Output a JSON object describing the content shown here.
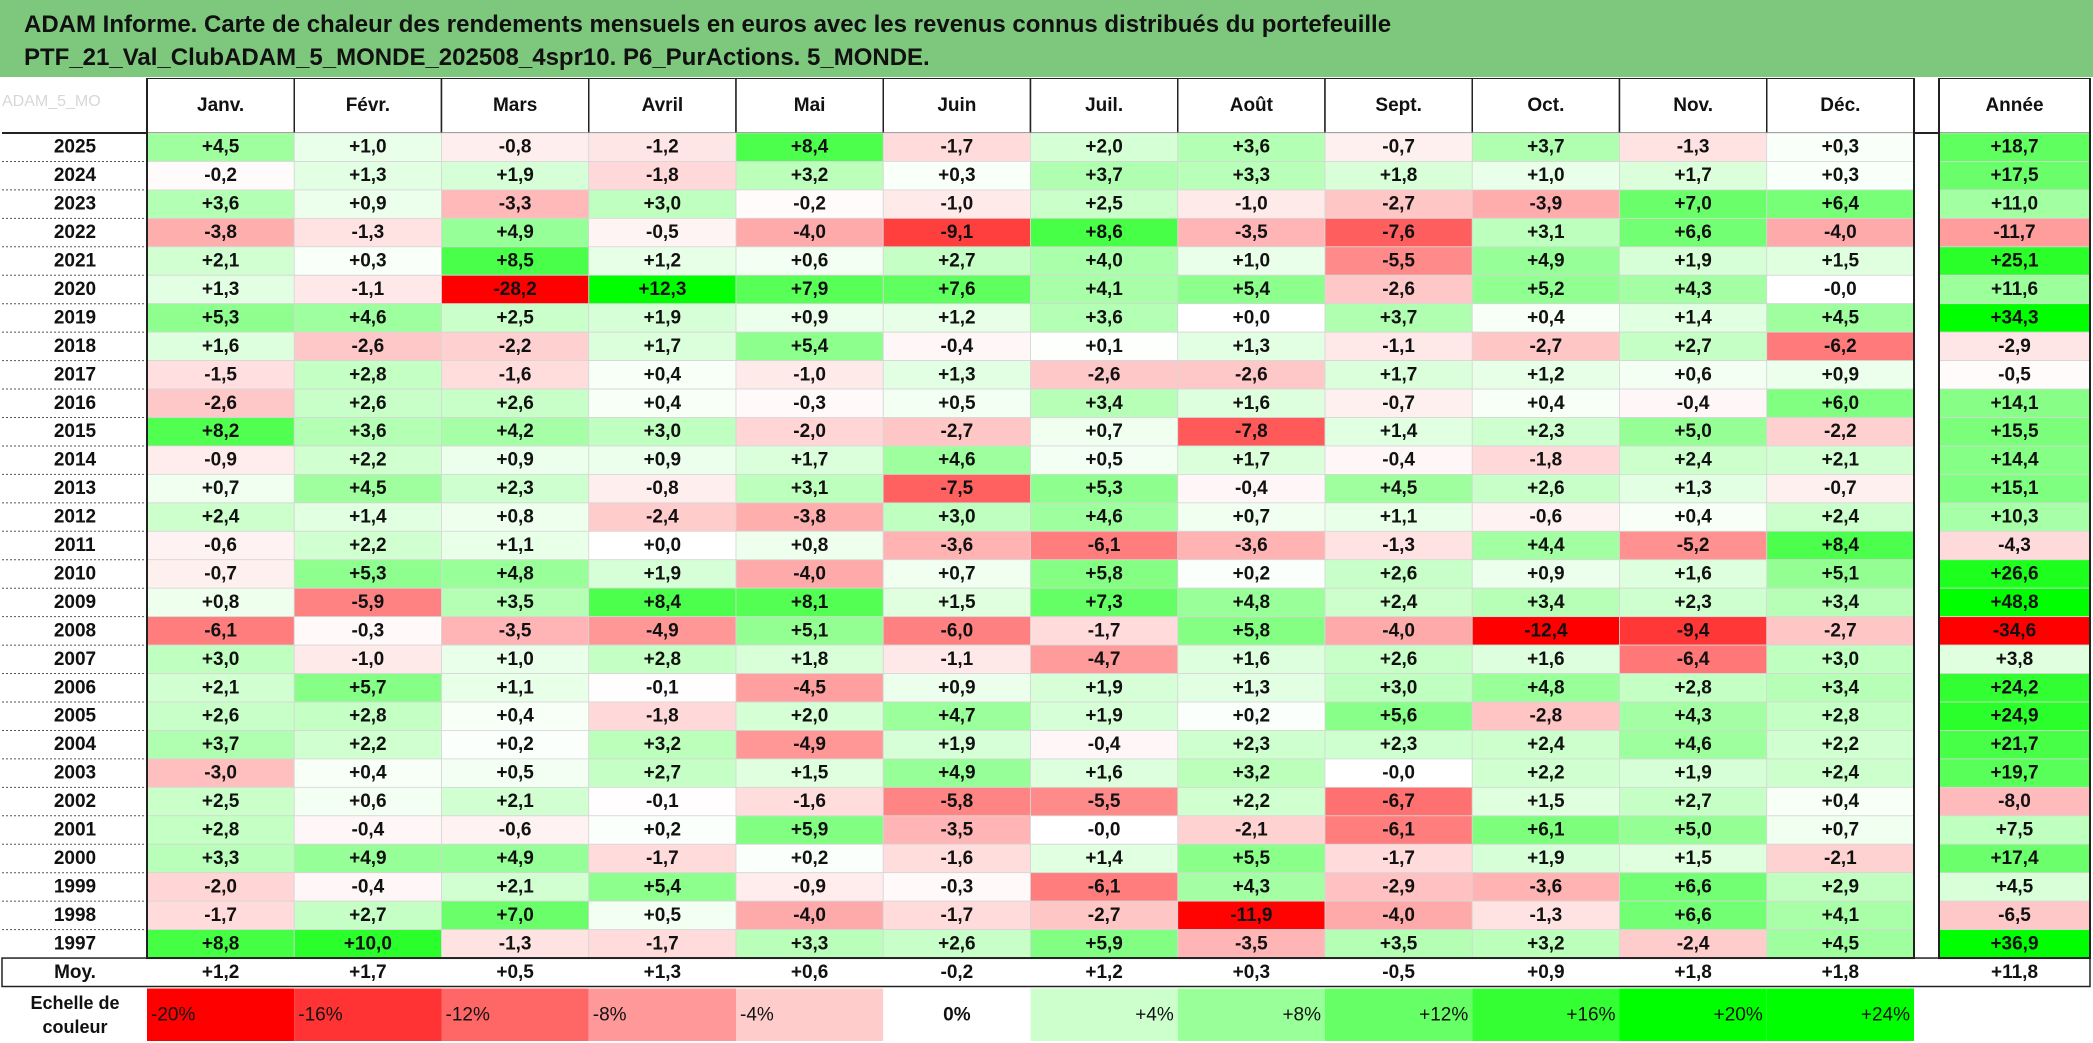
{
  "title_lines": [
    "ADAM Informe. Carte de chaleur des rendements mensuels en euros avec les revenus connus distribués du portefeuille",
    "PTF_21_Val_ClubADAM_5_MONDE_202508_4spr10. P6_PurActions. 5_MONDE."
  ],
  "watermark": "ADAM_5_MO",
  "colors": {
    "header_bg": "#7ec87e",
    "negative_max": "#ff0000",
    "neutral": "#ffffff",
    "positive_max": "#00ff00"
  },
  "chart_data": {
    "type": "heatmap",
    "columns": [
      "Janv.",
      "Févr.",
      "Mars",
      "Avril",
      "Mai",
      "Juin",
      "Juil.",
      "Août",
      "Sept.",
      "Oct.",
      "Nov.",
      "Déc."
    ],
    "total_column": "Année",
    "rows": [
      {
        "label": "2025",
        "values": [
          "+4,5",
          "+1,0",
          "-0,8",
          "-1,2",
          "+8,4",
          "-1,7",
          "+2,0",
          "+3,6",
          "-0,7",
          "+3,7",
          "-1,3",
          "+0,3"
        ],
        "total": "+18,7"
      },
      {
        "label": "2024",
        "values": [
          "-0,2",
          "+1,3",
          "+1,9",
          "-1,8",
          "+3,2",
          "+0,3",
          "+3,7",
          "+3,3",
          "+1,8",
          "+1,0",
          "+1,7",
          "+0,3"
        ],
        "total": "+17,5"
      },
      {
        "label": "2023",
        "values": [
          "+3,6",
          "+0,9",
          "-3,3",
          "+3,0",
          "-0,2",
          "-1,0",
          "+2,5",
          "-1,0",
          "-2,7",
          "-3,9",
          "+7,0",
          "+6,4"
        ],
        "total": "+11,0"
      },
      {
        "label": "2022",
        "values": [
          "-3,8",
          "-1,3",
          "+4,9",
          "-0,5",
          "-4,0",
          "-9,1",
          "+8,6",
          "-3,5",
          "-7,6",
          "+3,1",
          "+6,6",
          "-4,0"
        ],
        "total": "-11,7"
      },
      {
        "label": "2021",
        "values": [
          "+2,1",
          "+0,3",
          "+8,5",
          "+1,2",
          "+0,6",
          "+2,7",
          "+4,0",
          "+1,0",
          "-5,5",
          "+4,9",
          "+1,9",
          "+1,5"
        ],
        "total": "+25,1"
      },
      {
        "label": "2020",
        "values": [
          "+1,3",
          "-1,1",
          "-28,2",
          "+12,3",
          "+7,9",
          "+7,6",
          "+4,1",
          "+5,4",
          "-2,6",
          "+5,2",
          "+4,3",
          "-0,0"
        ],
        "total": "+11,6"
      },
      {
        "label": "2019",
        "values": [
          "+5,3",
          "+4,6",
          "+2,5",
          "+1,9",
          "+0,9",
          "+1,2",
          "+3,6",
          "+0,0",
          "+3,7",
          "+0,4",
          "+1,4",
          "+4,5"
        ],
        "total": "+34,3"
      },
      {
        "label": "2018",
        "values": [
          "+1,6",
          "-2,6",
          "-2,2",
          "+1,7",
          "+5,4",
          "-0,4",
          "+0,1",
          "+1,3",
          "-1,1",
          "-2,7",
          "+2,7",
          "-6,2"
        ],
        "total": "-2,9"
      },
      {
        "label": "2017",
        "values": [
          "-1,5",
          "+2,8",
          "-1,6",
          "+0,4",
          "-1,0",
          "+1,3",
          "-2,6",
          "-2,6",
          "+1,7",
          "+1,2",
          "+0,6",
          "+0,9"
        ],
        "total": "-0,5"
      },
      {
        "label": "2016",
        "values": [
          "-2,6",
          "+2,6",
          "+2,6",
          "+0,4",
          "-0,3",
          "+0,5",
          "+3,4",
          "+1,6",
          "-0,7",
          "+0,4",
          "-0,4",
          "+6,0"
        ],
        "total": "+14,1"
      },
      {
        "label": "2015",
        "values": [
          "+8,2",
          "+3,6",
          "+4,2",
          "+3,0",
          "-2,0",
          "-2,7",
          "+0,7",
          "-7,8",
          "+1,4",
          "+2,3",
          "+5,0",
          "-2,2"
        ],
        "total": "+15,5"
      },
      {
        "label": "2014",
        "values": [
          "-0,9",
          "+2,2",
          "+0,9",
          "+0,9",
          "+1,7",
          "+4,6",
          "+0,5",
          "+1,7",
          "-0,4",
          "-1,8",
          "+2,4",
          "+2,1"
        ],
        "total": "+14,4"
      },
      {
        "label": "2013",
        "values": [
          "+0,7",
          "+4,5",
          "+2,3",
          "-0,8",
          "+3,1",
          "-7,5",
          "+5,3",
          "-0,4",
          "+4,5",
          "+2,6",
          "+1,3",
          "-0,7"
        ],
        "total": "+15,1"
      },
      {
        "label": "2012",
        "values": [
          "+2,4",
          "+1,4",
          "+0,8",
          "-2,4",
          "-3,8",
          "+3,0",
          "+4,6",
          "+0,7",
          "+1,1",
          "-0,6",
          "+0,4",
          "+2,4"
        ],
        "total": "+10,3"
      },
      {
        "label": "2011",
        "values": [
          "-0,6",
          "+2,2",
          "+1,1",
          "+0,0",
          "+0,8",
          "-3,6",
          "-6,1",
          "-3,6",
          "-1,3",
          "+4,4",
          "-5,2",
          "+8,4"
        ],
        "total": "-4,3"
      },
      {
        "label": "2010",
        "values": [
          "-0,7",
          "+5,3",
          "+4,8",
          "+1,9",
          "-4,0",
          "+0,7",
          "+5,8",
          "+0,2",
          "+2,6",
          "+0,9",
          "+1,6",
          "+5,1"
        ],
        "total": "+26,6"
      },
      {
        "label": "2009",
        "values": [
          "+0,8",
          "-5,9",
          "+3,5",
          "+8,4",
          "+8,1",
          "+1,5",
          "+7,3",
          "+4,8",
          "+2,4",
          "+3,4",
          "+2,3",
          "+3,4"
        ],
        "total": "+48,8"
      },
      {
        "label": "2008",
        "values": [
          "-6,1",
          "-0,3",
          "-3,5",
          "-4,9",
          "+5,1",
          "-6,0",
          "-1,7",
          "+5,8",
          "-4,0",
          "-12,4",
          "-9,4",
          "-2,7"
        ],
        "total": "-34,6"
      },
      {
        "label": "2007",
        "values": [
          "+3,0",
          "-1,0",
          "+1,0",
          "+2,8",
          "+1,8",
          "-1,1",
          "-4,7",
          "+1,6",
          "+2,6",
          "+1,6",
          "-6,4",
          "+3,0"
        ],
        "total": "+3,8"
      },
      {
        "label": "2006",
        "values": [
          "+2,1",
          "+5,7",
          "+1,1",
          "-0,1",
          "-4,5",
          "+0,9",
          "+1,9",
          "+1,3",
          "+3,0",
          "+4,8",
          "+2,8",
          "+3,4"
        ],
        "total": "+24,2"
      },
      {
        "label": "2005",
        "values": [
          "+2,6",
          "+2,8",
          "+0,4",
          "-1,8",
          "+2,0",
          "+4,7",
          "+1,9",
          "+0,2",
          "+5,6",
          "-2,8",
          "+4,3",
          "+2,8"
        ],
        "total": "+24,9"
      },
      {
        "label": "2004",
        "values": [
          "+3,7",
          "+2,2",
          "+0,2",
          "+3,2",
          "-4,9",
          "+1,9",
          "-0,4",
          "+2,3",
          "+2,3",
          "+2,4",
          "+4,6",
          "+2,2"
        ],
        "total": "+21,7"
      },
      {
        "label": "2003",
        "values": [
          "-3,0",
          "+0,4",
          "+0,5",
          "+2,7",
          "+1,5",
          "+4,9",
          "+1,6",
          "+3,2",
          "-0,0",
          "+2,2",
          "+1,9",
          "+2,4"
        ],
        "total": "+19,7"
      },
      {
        "label": "2002",
        "values": [
          "+2,5",
          "+0,6",
          "+2,1",
          "-0,1",
          "-1,6",
          "-5,8",
          "-5,5",
          "+2,2",
          "-6,7",
          "+1,5",
          "+2,7",
          "+0,4"
        ],
        "total": "-8,0"
      },
      {
        "label": "2001",
        "values": [
          "+2,8",
          "-0,4",
          "-0,6",
          "+0,2",
          "+5,9",
          "-3,5",
          "-0,0",
          "-2,1",
          "-6,1",
          "+6,1",
          "+5,0",
          "+0,7"
        ],
        "total": "+7,5"
      },
      {
        "label": "2000",
        "values": [
          "+3,3",
          "+4,9",
          "+4,9",
          "-1,7",
          "+0,2",
          "-1,6",
          "+1,4",
          "+5,5",
          "-1,7",
          "+1,9",
          "+1,5",
          "-2,1"
        ],
        "total": "+17,4"
      },
      {
        "label": "1999",
        "values": [
          "-2,0",
          "-0,4",
          "+2,1",
          "+5,4",
          "-0,9",
          "-0,3",
          "-6,1",
          "+4,3",
          "-2,9",
          "-3,6",
          "+6,6",
          "+2,9"
        ],
        "total": "+4,5"
      },
      {
        "label": "1998",
        "values": [
          "-1,7",
          "+2,7",
          "+7,0",
          "+0,5",
          "-4,0",
          "-1,7",
          "-2,7",
          "-11,9",
          "-4,0",
          "-1,3",
          "+6,6",
          "+4,1"
        ],
        "total": "-6,5"
      },
      {
        "label": "1997",
        "values": [
          "+8,8",
          "+10,0",
          "-1,3",
          "-1,7",
          "+3,3",
          "+2,6",
          "+5,9",
          "-3,5",
          "+3,5",
          "+3,2",
          "-2,4",
          "+4,5"
        ],
        "total": "+36,9"
      }
    ],
    "average_row": {
      "label": "Moy.",
      "values": [
        "+1,2",
        "+1,7",
        "+0,5",
        "+1,3",
        "+0,6",
        "-0,2",
        "+1,2",
        "+0,3",
        "-0,5",
        "+0,9",
        "+1,8",
        "+1,8"
      ],
      "total": "+11,8"
    },
    "scale": {
      "label_lines": [
        "Echelle de",
        "couleur"
      ],
      "stops": [
        "-20%",
        "-16%",
        "-12%",
        "-8%",
        "-4%",
        "0%",
        "+4%",
        "+8%",
        "+12%",
        "+16%",
        "+20%",
        "+24%"
      ]
    },
    "color_ranges": {
      "monthly": [
        -12,
        12
      ],
      "annual": [
        -30,
        30
      ]
    }
  }
}
